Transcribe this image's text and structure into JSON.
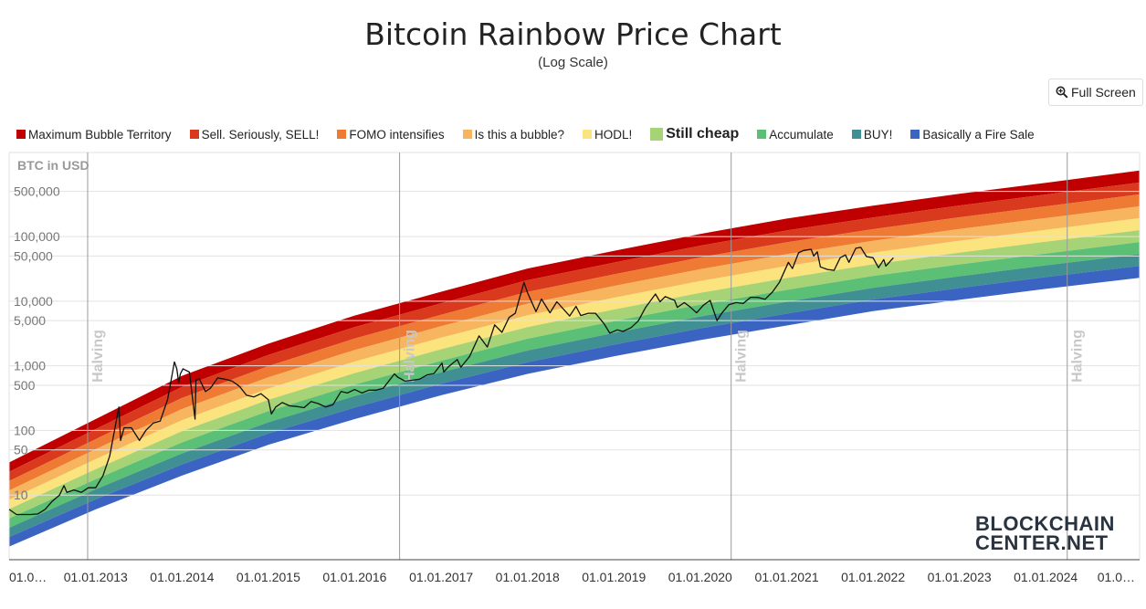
{
  "header": {
    "title": "Bitcoin Rainbow Price Chart",
    "subtitle": "(Log Scale)",
    "fullscreen_label": "Full Screen",
    "fullscreen_icon": "zoom-in-icon"
  },
  "watermark": {
    "line1": "BLOCKCHAIN",
    "line2": "CENTER.NET"
  },
  "chart_data": {
    "type": "area",
    "ylabel": "BTC in USD",
    "yscale": "log",
    "grid": true,
    "legend_position": "top",
    "active_band": "Still cheap",
    "ylim": [
      1,
      2000000
    ],
    "y_ticks": [
      {
        "value": 10,
        "label": "10"
      },
      {
        "value": 50,
        "label": "50"
      },
      {
        "value": 100,
        "label": "100"
      },
      {
        "value": 500,
        "label": "500"
      },
      {
        "value": 1000,
        "label": "1,000"
      },
      {
        "value": 5000,
        "label": "5,000"
      },
      {
        "value": 10000,
        "label": "10,000"
      },
      {
        "value": 50000,
        "label": "50,000"
      },
      {
        "value": 100000,
        "label": "100,000"
      },
      {
        "value": 500000,
        "label": "500,000"
      }
    ],
    "x_range": [
      "2012-01-01",
      "2025-02-01"
    ],
    "x_ticks": [
      {
        "date": "2012-01-01",
        "label": "01.0…"
      },
      {
        "date": "2013-01-01",
        "label": "01.01.2013"
      },
      {
        "date": "2014-01-01",
        "label": "01.01.2014"
      },
      {
        "date": "2015-01-01",
        "label": "01.01.2015"
      },
      {
        "date": "2016-01-01",
        "label": "01.01.2016"
      },
      {
        "date": "2017-01-01",
        "label": "01.01.2017"
      },
      {
        "date": "2018-01-01",
        "label": "01.01.2018"
      },
      {
        "date": "2019-01-01",
        "label": "01.01.2019"
      },
      {
        "date": "2020-01-01",
        "label": "01.01.2020"
      },
      {
        "date": "2021-01-01",
        "label": "01.01.2021"
      },
      {
        "date": "2022-01-01",
        "label": "01.01.2022"
      },
      {
        "date": "2023-01-01",
        "label": "01.01.2023"
      },
      {
        "date": "2024-01-01",
        "label": "01.01.2024"
      },
      {
        "date": "2025-01-01",
        "label": "01.0…"
      }
    ],
    "halvings": [
      {
        "date": "2012-11-28",
        "label": "Halving"
      },
      {
        "date": "2016-07-09",
        "label": "Halving"
      },
      {
        "date": "2020-05-11",
        "label": "Halving"
      },
      {
        "date": "2024-04-01",
        "label": "Halving"
      }
    ],
    "bands": [
      {
        "name": "Maximum Bubble Territory",
        "color": "#c00000"
      },
      {
        "name": "Sell. Seriously, SELL!",
        "color": "#d93a1e"
      },
      {
        "name": "FOMO intensifies",
        "color": "#ee7a34"
      },
      {
        "name": "Is this a bubble?",
        "color": "#f8b55f"
      },
      {
        "name": "HODL!",
        "color": "#fbe37e"
      },
      {
        "name": "Still cheap",
        "color": "#a7d377"
      },
      {
        "name": "Accumulate",
        "color": "#5cbf76"
      },
      {
        "name": "BUY!",
        "color": "#3f8f93"
      },
      {
        "name": "Basically a Fire Sale",
        "color": "#3a63c2"
      }
    ],
    "band_curve": {
      "dates": [
        "2012-01-01",
        "2013-01-01",
        "2014-01-01",
        "2015-01-01",
        "2016-01-01",
        "2017-01-01",
        "2018-01-01",
        "2019-01-01",
        "2020-01-01",
        "2021-01-01",
        "2022-01-01",
        "2023-01-01",
        "2024-01-01",
        "2025-02-01"
      ],
      "top": [
        32,
        150,
        700,
        2200,
        6000,
        14000,
        32000,
        60000,
        110000,
        190000,
        300000,
        460000,
        680000,
        1050000
      ],
      "bottom": [
        1.6,
        6,
        20,
        60,
        150,
        350,
        750,
        1400,
        2500,
        4200,
        7000,
        10500,
        15500,
        23000
      ]
    },
    "series": [
      {
        "name": "BTC price",
        "color": "#111111",
        "points": [
          [
            "2012-01-01",
            6
          ],
          [
            "2012-02-01",
            5
          ],
          [
            "2012-03-01",
            5
          ],
          [
            "2012-04-01",
            5
          ],
          [
            "2012-05-01",
            5.1
          ],
          [
            "2012-06-01",
            6
          ],
          [
            "2012-07-01",
            8
          ],
          [
            "2012-08-01",
            10
          ],
          [
            "2012-08-20",
            14
          ],
          [
            "2012-09-01",
            11
          ],
          [
            "2012-10-01",
            12
          ],
          [
            "2012-11-01",
            11
          ],
          [
            "2012-12-01",
            13
          ],
          [
            "2013-01-01",
            13
          ],
          [
            "2013-02-01",
            20
          ],
          [
            "2013-03-01",
            40
          ],
          [
            "2013-04-09",
            230
          ],
          [
            "2013-04-16",
            70
          ],
          [
            "2013-05-01",
            110
          ],
          [
            "2013-06-01",
            110
          ],
          [
            "2013-07-05",
            70
          ],
          [
            "2013-08-01",
            100
          ],
          [
            "2013-09-01",
            130
          ],
          [
            "2013-10-01",
            140
          ],
          [
            "2013-11-01",
            300
          ],
          [
            "2013-11-30",
            1150
          ],
          [
            "2013-12-10",
            900
          ],
          [
            "2013-12-18",
            550
          ],
          [
            "2013-12-25",
            750
          ],
          [
            "2014-01-05",
            900
          ],
          [
            "2014-02-01",
            800
          ],
          [
            "2014-02-25",
            150
          ],
          [
            "2014-03-01",
            600
          ],
          [
            "2014-03-15",
            630
          ],
          [
            "2014-04-10",
            400
          ],
          [
            "2014-05-01",
            450
          ],
          [
            "2014-06-01",
            650
          ],
          [
            "2014-07-01",
            620
          ],
          [
            "2014-08-01",
            580
          ],
          [
            "2014-09-01",
            480
          ],
          [
            "2014-10-01",
            350
          ],
          [
            "2014-11-01",
            330
          ],
          [
            "2014-12-01",
            370
          ],
          [
            "2015-01-01",
            300
          ],
          [
            "2015-01-14",
            180
          ],
          [
            "2015-02-01",
            230
          ],
          [
            "2015-03-01",
            270
          ],
          [
            "2015-04-01",
            240
          ],
          [
            "2015-05-01",
            235
          ],
          [
            "2015-06-01",
            225
          ],
          [
            "2015-07-01",
            280
          ],
          [
            "2015-08-01",
            260
          ],
          [
            "2015-09-01",
            230
          ],
          [
            "2015-10-01",
            250
          ],
          [
            "2015-11-04",
            400
          ],
          [
            "2015-12-01",
            380
          ],
          [
            "2016-01-01",
            430
          ],
          [
            "2016-02-01",
            380
          ],
          [
            "2016-03-01",
            420
          ],
          [
            "2016-04-01",
            420
          ],
          [
            "2016-05-01",
            450
          ],
          [
            "2016-06-17",
            750
          ],
          [
            "2016-07-01",
            670
          ],
          [
            "2016-08-01",
            580
          ],
          [
            "2016-09-01",
            600
          ],
          [
            "2016-10-01",
            620
          ],
          [
            "2016-11-01",
            720
          ],
          [
            "2016-12-01",
            760
          ],
          [
            "2017-01-04",
            1100
          ],
          [
            "2017-01-12",
            800
          ],
          [
            "2017-02-01",
            970
          ],
          [
            "2017-03-10",
            1250
          ],
          [
            "2017-03-25",
            950
          ],
          [
            "2017-05-01",
            1400
          ],
          [
            "2017-06-10",
            2900
          ],
          [
            "2017-07-15",
            1950
          ],
          [
            "2017-08-15",
            4300
          ],
          [
            "2017-09-15",
            3300
          ],
          [
            "2017-10-15",
            5600
          ],
          [
            "2017-11-10",
            6500
          ],
          [
            "2017-12-17",
            19500
          ],
          [
            "2018-01-01",
            13500
          ],
          [
            "2018-02-06",
            6900
          ],
          [
            "2018-03-01",
            10800
          ],
          [
            "2018-04-06",
            6600
          ],
          [
            "2018-05-05",
            9800
          ],
          [
            "2018-06-28",
            5900
          ],
          [
            "2018-07-25",
            8300
          ],
          [
            "2018-08-14",
            6000
          ],
          [
            "2018-09-15",
            6500
          ],
          [
            "2018-10-15",
            6500
          ],
          [
            "2018-11-20",
            4500
          ],
          [
            "2018-12-15",
            3200
          ],
          [
            "2019-01-15",
            3600
          ],
          [
            "2019-02-08",
            3400
          ],
          [
            "2019-03-15",
            3900
          ],
          [
            "2019-04-15",
            5000
          ],
          [
            "2019-05-15",
            8000
          ],
          [
            "2019-06-26",
            12900
          ],
          [
            "2019-07-15",
            9800
          ],
          [
            "2019-08-06",
            11800
          ],
          [
            "2019-09-15",
            10300
          ],
          [
            "2019-09-26",
            8000
          ],
          [
            "2019-10-26",
            9500
          ],
          [
            "2019-11-20",
            8100
          ],
          [
            "2019-12-17",
            6600
          ],
          [
            "2020-01-15",
            8700
          ],
          [
            "2020-02-12",
            10300
          ],
          [
            "2020-03-12",
            5000
          ],
          [
            "2020-04-01",
            6500
          ],
          [
            "2020-05-01",
            8800
          ],
          [
            "2020-06-01",
            9500
          ],
          [
            "2020-07-01",
            9200
          ],
          [
            "2020-08-01",
            11500
          ],
          [
            "2020-09-01",
            11400
          ],
          [
            "2020-10-01",
            10700
          ],
          [
            "2020-11-01",
            13800
          ],
          [
            "2020-12-01",
            19500
          ],
          [
            "2021-01-08",
            40000
          ],
          [
            "2021-01-25",
            32000
          ],
          [
            "2021-02-20",
            56000
          ],
          [
            "2021-03-13",
            61000
          ],
          [
            "2021-04-14",
            63500
          ],
          [
            "2021-04-25",
            50000
          ],
          [
            "2021-05-10",
            58000
          ],
          [
            "2021-05-23",
            34000
          ],
          [
            "2021-06-22",
            31000
          ],
          [
            "2021-07-20",
            30000
          ],
          [
            "2021-08-15",
            47000
          ],
          [
            "2021-09-06",
            52000
          ],
          [
            "2021-09-21",
            40000
          ],
          [
            "2021-10-20",
            66000
          ],
          [
            "2021-11-10",
            68000
          ],
          [
            "2021-12-04",
            49000
          ],
          [
            "2022-01-01",
            47000
          ],
          [
            "2022-01-24",
            33000
          ],
          [
            "2022-02-15",
            44000
          ],
          [
            "2022-02-24",
            35000
          ],
          [
            "2022-03-28",
            47000
          ]
        ]
      }
    ]
  }
}
